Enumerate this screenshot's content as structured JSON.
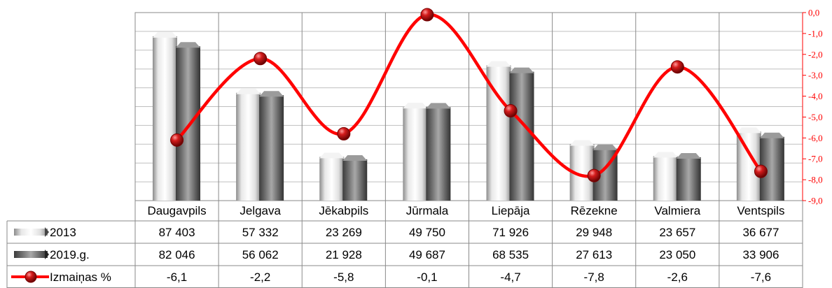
{
  "chart_data": {
    "type": "bar",
    "categories": [
      "Daugavpils",
      "Jelgava",
      "Jēkabpils",
      "Jūrmala",
      "Liepāja",
      "Rēzekne",
      "Valmiera",
      "Ventspils"
    ],
    "series": [
      {
        "name": "2013",
        "values": [
          87403,
          57332,
          23269,
          49750,
          71926,
          29948,
          23657,
          36677
        ],
        "color": "#d9d9d9"
      },
      {
        "name": "2019.g.",
        "values": [
          82046,
          56062,
          21928,
          49687,
          68535,
          27613,
          23050,
          33906
        ],
        "color": "#6e6e6e"
      }
    ],
    "line_series": {
      "name": "Izmaiņas %",
      "values": [
        -6.1,
        -2.2,
        -5.8,
        -0.1,
        -4.7,
        -7.8,
        -2.6,
        -7.6
      ],
      "color": "#ff0000",
      "axis": "right"
    },
    "table_rows": [
      {
        "label": "2013",
        "values": [
          "87 403",
          "57 332",
          "23 269",
          "49 750",
          "71 926",
          "29 948",
          "23 657",
          "36 677"
        ]
      },
      {
        "label": "2019.g.",
        "values": [
          "82 046",
          "56 062",
          "21 928",
          "49 687",
          "68 535",
          "27 613",
          "23 050",
          "33 906"
        ]
      },
      {
        "label": "Izmaiņas %",
        "values": [
          "-6,1",
          "-2,2",
          "-5,8",
          "-0,1",
          "-4,7",
          "-7,8",
          "-2,6",
          "-7,6"
        ]
      }
    ],
    "y2_ticks": [
      "0,0",
      "-1,0",
      "-2,0",
      "-3,0",
      "-4,0",
      "-5,0",
      "-6,0",
      "-7,0",
      "-8,0",
      "-9,0"
    ],
    "y2lim": [
      -9,
      0
    ],
    "ylim": [
      0,
      100000
    ],
    "grid": true,
    "legend": "data-table"
  }
}
